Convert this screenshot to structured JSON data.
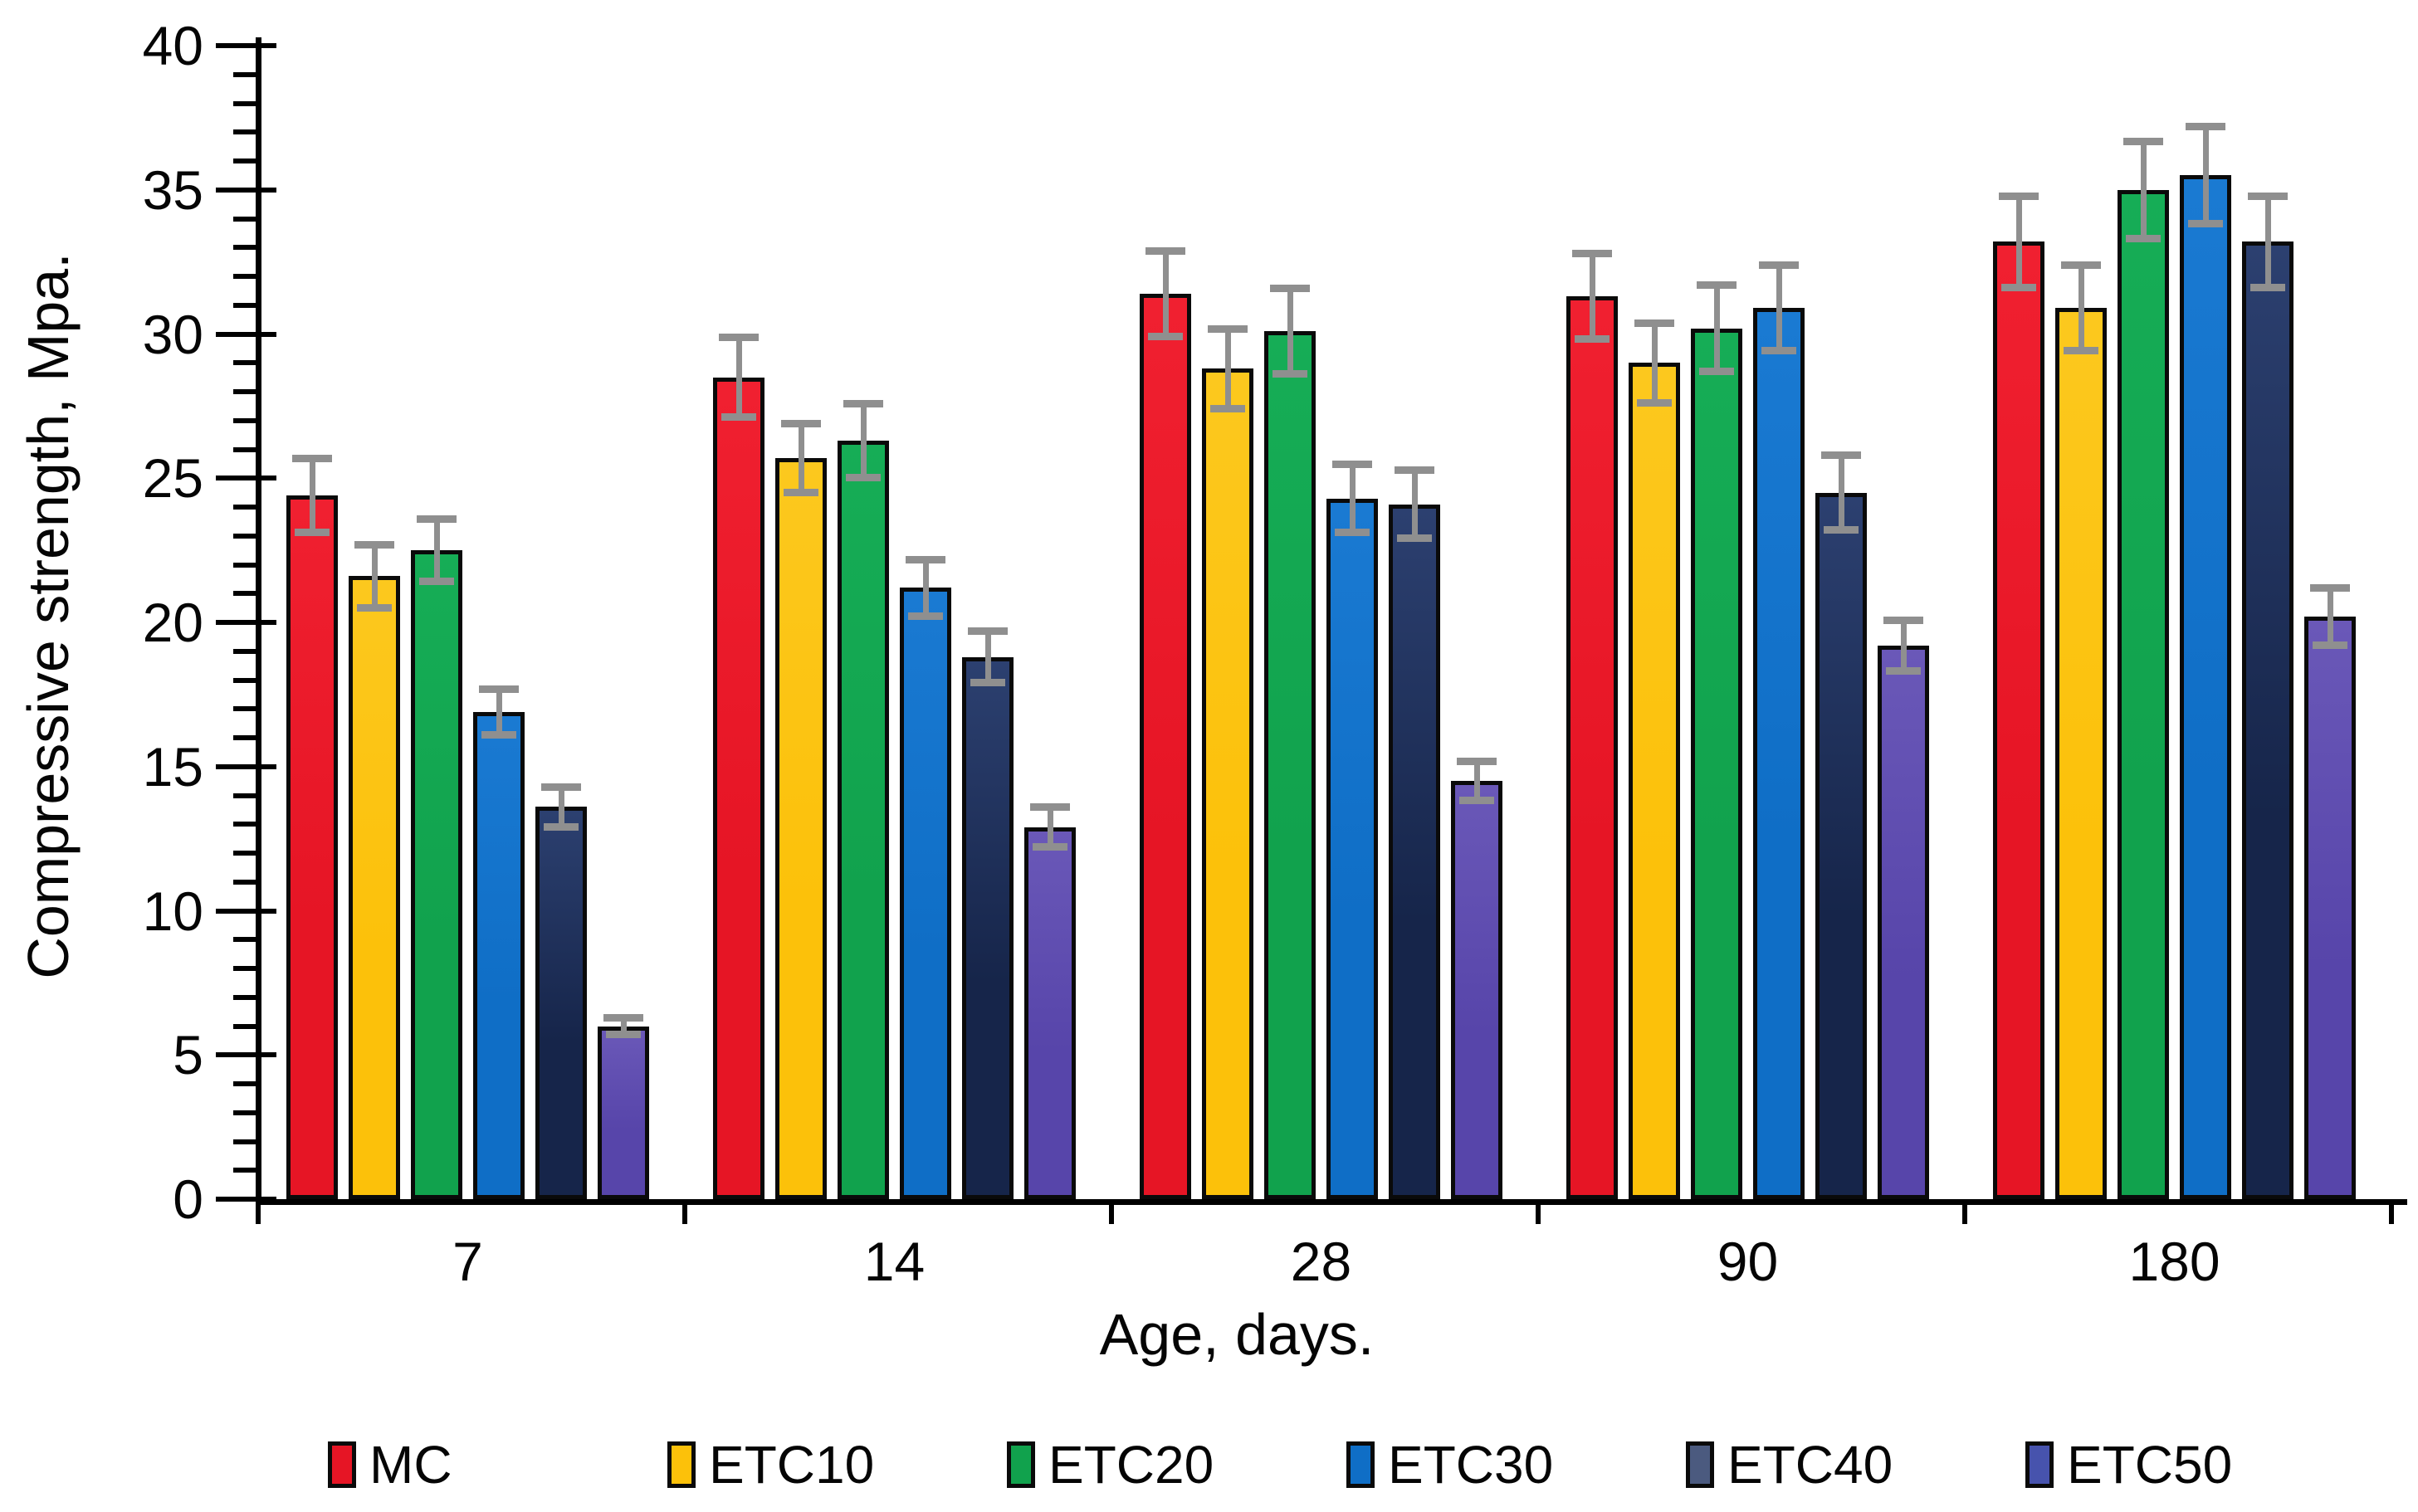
{
  "chart_data": {
    "type": "bar",
    "title": "",
    "xlabel": "Age, days.",
    "ylabel": "Compressive strength,  Mpa.",
    "ylim": [
      0,
      40
    ],
    "y_major_step": 5,
    "y_minor_step": 1,
    "grid": false,
    "legend_position": "bottom",
    "y_ticks": [
      "0",
      "5",
      "10",
      "15",
      "20",
      "25",
      "30",
      "35",
      "40"
    ],
    "categories": [
      "7",
      "14",
      "28",
      "90",
      "180"
    ],
    "series": [
      {
        "name": "MC",
        "color": "#e61525",
        "color_top": "#f02030",
        "values": [
          24.4,
          28.5,
          31.4,
          31.3,
          33.2
        ],
        "errors": [
          1.3,
          1.4,
          1.5,
          1.5,
          1.6
        ]
      },
      {
        "name": "ETC10",
        "color": "#fcc10a",
        "color_top": "#fcc81e",
        "values": [
          21.6,
          25.7,
          28.8,
          29.0,
          30.9
        ],
        "errors": [
          1.1,
          1.2,
          1.4,
          1.4,
          1.5
        ]
      },
      {
        "name": "ETC20",
        "color": "#11a24d",
        "color_top": "#16ad56",
        "values": [
          22.5,
          26.3,
          30.1,
          30.2,
          35.0
        ],
        "errors": [
          1.1,
          1.3,
          1.5,
          1.5,
          1.7
        ]
      },
      {
        "name": "ETC30",
        "color": "#0f6ec6",
        "color_top": "#1a7ad2",
        "values": [
          16.9,
          21.2,
          24.3,
          30.9,
          35.5
        ],
        "errors": [
          0.8,
          1.0,
          1.2,
          1.5,
          1.7
        ]
      },
      {
        "name": "ETC40",
        "color": "#16254a",
        "color_top": "#2c4070",
        "values": [
          13.6,
          18.8,
          24.1,
          24.5,
          33.2
        ],
        "errors": [
          0.7,
          0.9,
          1.2,
          1.3,
          1.6
        ]
      },
      {
        "name": "ETC50",
        "color": "#5745aa",
        "color_top": "#6a58b8",
        "values": [
          6.0,
          12.9,
          14.5,
          19.2,
          20.2
        ],
        "errors": [
          0.3,
          0.7,
          0.7,
          0.9,
          1.0
        ]
      }
    ]
  },
  "legend": [
    {
      "label": "MC",
      "color": "#e61525"
    },
    {
      "label": "ETC10",
      "color": "#fcc10a"
    },
    {
      "label": "ETC20",
      "color": "#11a24d"
    },
    {
      "label": "ETC30",
      "color": "#0f6ec6"
    },
    {
      "label": "ETC40",
      "color": "#4b5a7f"
    },
    {
      "label": "ETC50",
      "color": "#4753ad"
    }
  ]
}
